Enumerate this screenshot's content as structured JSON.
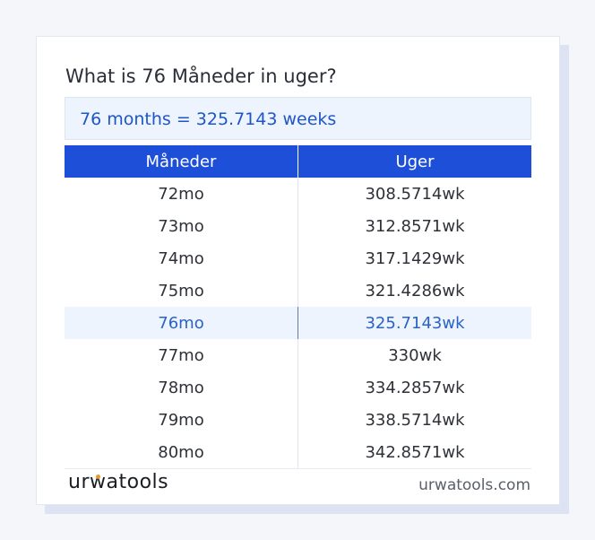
{
  "title": "What is 76 Måneder in uger?",
  "result": "76 months = 325.7143 weeks",
  "table": {
    "headers": [
      "Måneder",
      "Uger"
    ],
    "rows": [
      [
        "72mo",
        "308.5714wk"
      ],
      [
        "73mo",
        "312.8571wk"
      ],
      [
        "74mo",
        "317.1429wk"
      ],
      [
        "75mo",
        "321.4286wk"
      ],
      [
        "76mo",
        "325.7143wk"
      ],
      [
        "77mo",
        "330wk"
      ],
      [
        "78mo",
        "334.2857wk"
      ],
      [
        "79mo",
        "338.5714wk"
      ],
      [
        "80mo",
        "342.8571wk"
      ]
    ],
    "highlighted_row": 4
  },
  "brand": {
    "logo_text_1": "ur",
    "logo_text_2": "w",
    "logo_text_3": "atools",
    "site": "urwatools.com"
  },
  "colors": {
    "accent": "#1e4fd8",
    "highlight_bg": "#edf4fd",
    "logo_dot": "#e79a2e"
  }
}
